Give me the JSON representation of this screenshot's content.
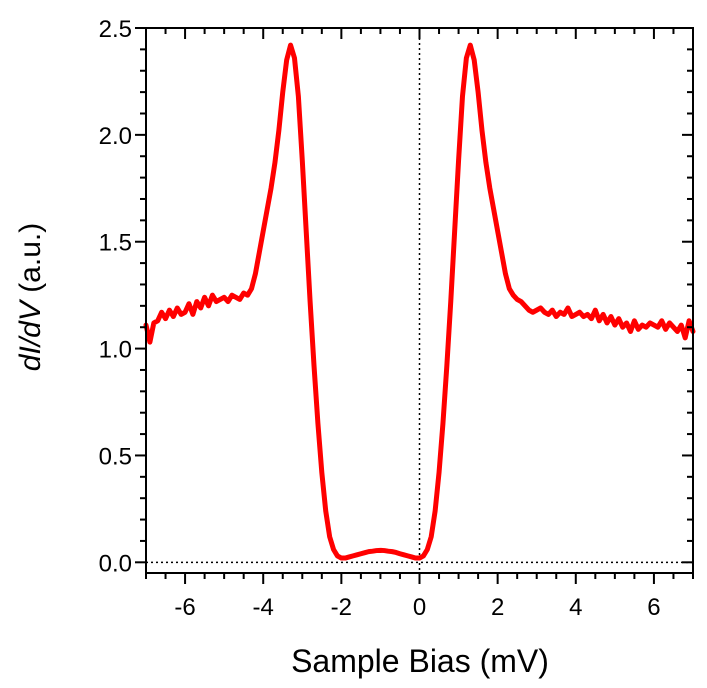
{
  "chart_data": {
    "type": "line",
    "title": "",
    "xlabel": "Sample Bias (mV)",
    "ylabel_italic": "dI/dV",
    "ylabel_unit": " (a.u.)",
    "xlim": [
      -7,
      7
    ],
    "ylim": [
      -0.05,
      2.5
    ],
    "x_ticks": [
      -6,
      -4,
      -2,
      0,
      2,
      4,
      6
    ],
    "x_tick_labels": [
      "-6",
      "-4",
      "-2",
      "0",
      "2",
      "4",
      "6"
    ],
    "y_ticks": [
      0.0,
      0.5,
      1.0,
      1.5,
      2.0,
      2.5
    ],
    "y_tick_labels": [
      "0.0",
      "0.5",
      "1.0",
      "1.5",
      "2.0",
      "2.5"
    ],
    "grid": false,
    "reference_lines": [
      {
        "orientation": "vertical",
        "value": 0,
        "style": "dotted"
      },
      {
        "orientation": "horizontal",
        "value": 0,
        "style": "dotted"
      }
    ],
    "series": [
      {
        "color": "#ff0000",
        "x": [
          -7.0,
          -6.9,
          -6.8,
          -6.7,
          -6.6,
          -6.5,
          -6.4,
          -6.3,
          -6.2,
          -6.1,
          -6.0,
          -5.9,
          -5.8,
          -5.7,
          -5.6,
          -5.5,
          -5.4,
          -5.3,
          -5.2,
          -5.1,
          -5.0,
          -4.9,
          -4.8,
          -4.7,
          -4.6,
          -4.5,
          -4.4,
          -4.3,
          -4.2,
          -4.1,
          -4.0,
          -3.9,
          -3.8,
          -3.7,
          -3.6,
          -3.5,
          -3.4,
          -3.3,
          -3.2,
          -3.1,
          -3.0,
          -2.9,
          -2.8,
          -2.7,
          -2.6,
          -2.5,
          -2.4,
          -2.3,
          -2.2,
          -2.1,
          -2.0,
          -1.9,
          -1.8,
          -1.7,
          -1.6,
          -1.5,
          -1.4,
          -1.3,
          -1.2,
          -1.1,
          -1.0,
          -0.9,
          -0.8,
          -0.7,
          -0.6,
          -0.5,
          -0.4,
          -0.3,
          -0.2,
          -0.1,
          0.0,
          0.1,
          0.2,
          0.3,
          0.4,
          0.5,
          0.6,
          0.7,
          0.8,
          0.9,
          1.0,
          1.1,
          1.2,
          1.3,
          1.4,
          1.5,
          1.6,
          1.7,
          1.8,
          1.9,
          2.0,
          2.1,
          2.2,
          2.3,
          2.4,
          2.5,
          2.6,
          2.7,
          2.8,
          2.9,
          3.0,
          3.1,
          3.2,
          3.3,
          3.4,
          3.5,
          3.6,
          3.7,
          3.8,
          3.9,
          4.0,
          4.1,
          4.2,
          4.3,
          4.4,
          4.5,
          4.6,
          4.7,
          4.8,
          4.9,
          5.0,
          5.1,
          5.2,
          5.3,
          5.4,
          5.5,
          5.6,
          5.7,
          5.8,
          5.9,
          6.0,
          6.1,
          6.2,
          6.3,
          6.4,
          6.5,
          6.6,
          6.7,
          6.8,
          6.9,
          7.0
        ],
        "y": [
          1.11,
          1.03,
          1.12,
          1.13,
          1.17,
          1.14,
          1.18,
          1.15,
          1.19,
          1.16,
          1.17,
          1.21,
          1.16,
          1.22,
          1.19,
          1.24,
          1.2,
          1.25,
          1.22,
          1.23,
          1.24,
          1.22,
          1.25,
          1.24,
          1.23,
          1.26,
          1.25,
          1.28,
          1.35,
          1.45,
          1.55,
          1.65,
          1.75,
          1.87,
          2.02,
          2.2,
          2.35,
          2.42,
          2.36,
          2.18,
          1.88,
          1.55,
          1.22,
          0.92,
          0.65,
          0.42,
          0.24,
          0.12,
          0.06,
          0.03,
          0.02,
          0.02,
          0.025,
          0.03,
          0.035,
          0.04,
          0.045,
          0.05,
          0.052,
          0.055,
          0.056,
          0.055,
          0.052,
          0.05,
          0.046,
          0.04,
          0.035,
          0.03,
          0.025,
          0.02,
          0.02,
          0.03,
          0.06,
          0.12,
          0.24,
          0.42,
          0.65,
          0.92,
          1.22,
          1.55,
          1.88,
          2.18,
          2.36,
          2.42,
          2.35,
          2.2,
          2.02,
          1.87,
          1.75,
          1.65,
          1.55,
          1.45,
          1.35,
          1.28,
          1.25,
          1.23,
          1.22,
          1.2,
          1.18,
          1.17,
          1.18,
          1.19,
          1.17,
          1.16,
          1.18,
          1.15,
          1.17,
          1.16,
          1.19,
          1.15,
          1.16,
          1.17,
          1.15,
          1.16,
          1.14,
          1.18,
          1.13,
          1.16,
          1.12,
          1.15,
          1.11,
          1.14,
          1.1,
          1.12,
          1.08,
          1.13,
          1.09,
          1.11,
          1.1,
          1.12,
          1.11,
          1.1,
          1.13,
          1.09,
          1.12,
          1.1,
          1.08,
          1.11,
          1.05,
          1.13,
          1.08
        ]
      }
    ]
  }
}
